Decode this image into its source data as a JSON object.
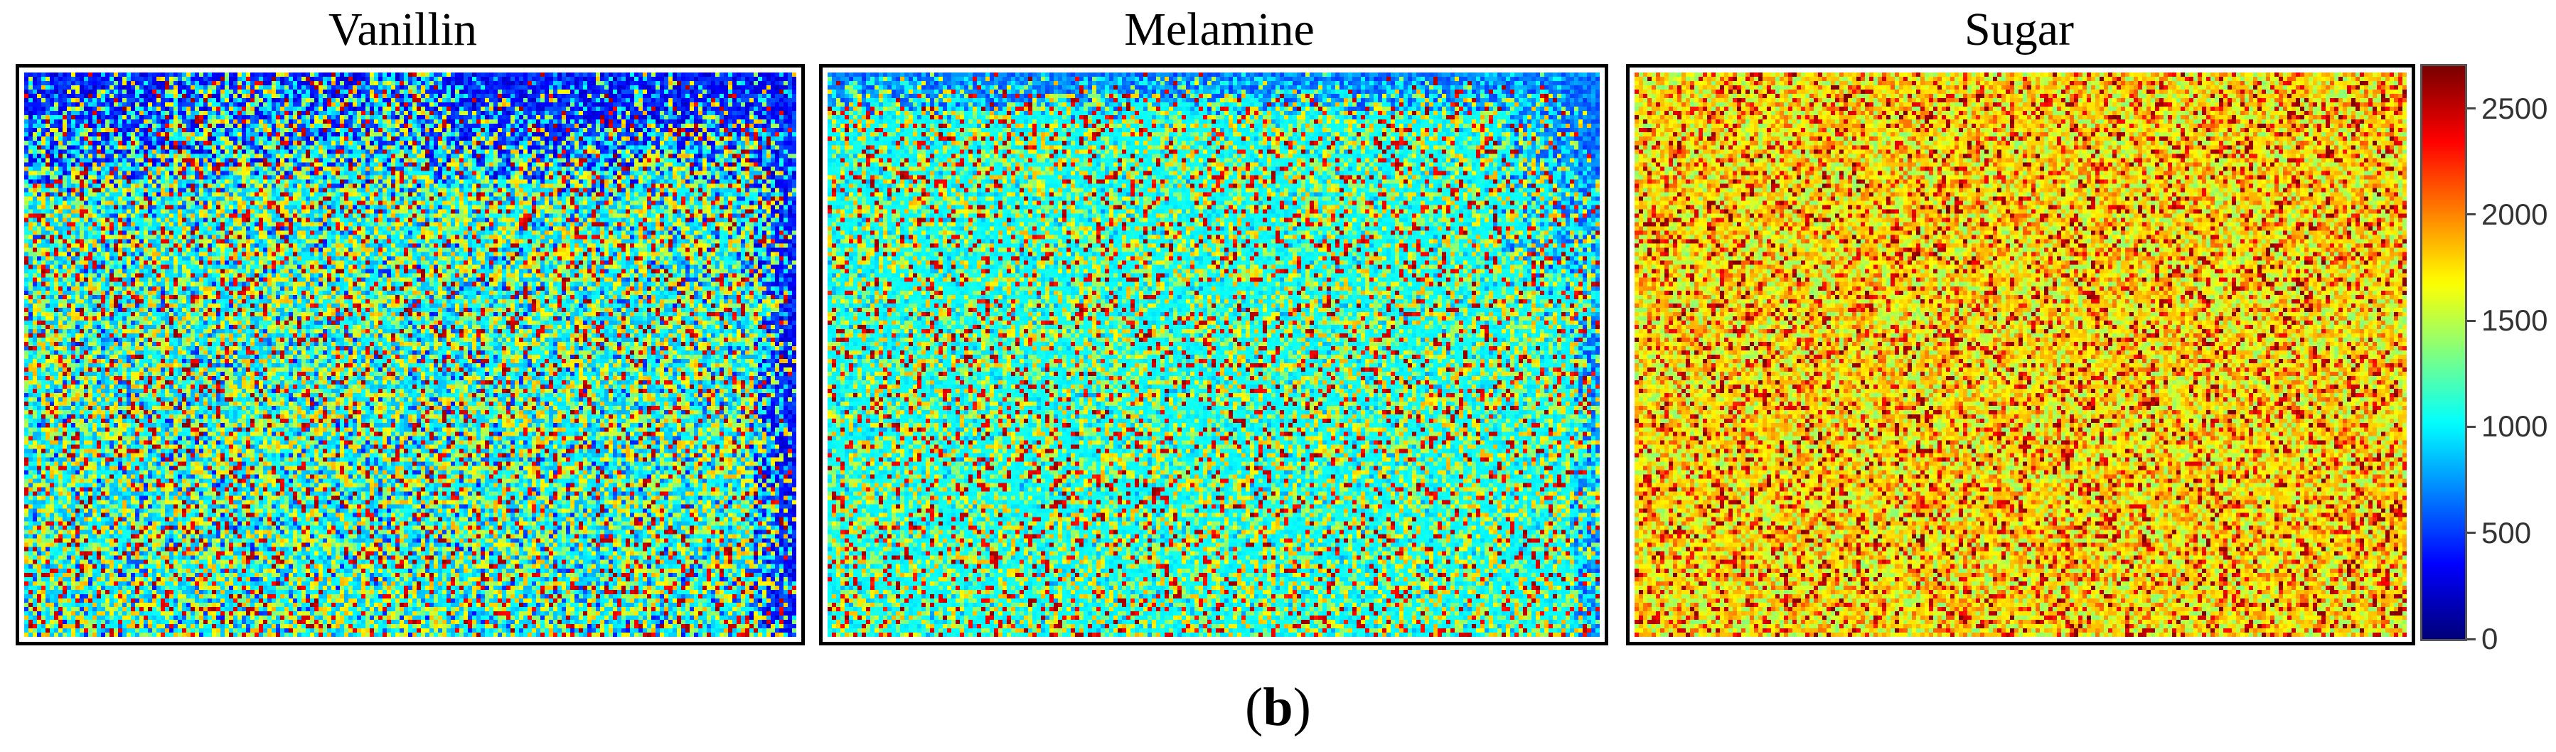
{
  "figure": {
    "caption_open": "(",
    "caption_letter": "b",
    "caption_close": ")"
  },
  "chart_data": [
    {
      "type": "heatmap",
      "title": "Vanillin",
      "colormap": "jet",
      "clim": [
        0,
        2700
      ],
      "pattern": "mixed; mostly cyan/light blue with scattered yellow and dark red speckles; dark blue at the top band and right edge",
      "typical_range": [
        300,
        2600
      ]
    },
    {
      "type": "heatmap",
      "title": "Melamine",
      "colormap": "jet",
      "clim": [
        0,
        2700
      ],
      "pattern": "predominantly cyan with yellow/red speckles; blue along the top edge and upper-right corner",
      "typical_range": [
        600,
        2600
      ]
    },
    {
      "type": "heatmap",
      "title": "Sugar",
      "colormap": "jet",
      "clim": [
        0,
        2700
      ],
      "pattern": "predominantly yellow and light green with dense dark red speckles",
      "typical_range": [
        1300,
        2700
      ]
    }
  ],
  "colorbar": {
    "ticks": [
      "2500",
      "2000",
      "1500",
      "1000",
      "500",
      "0"
    ],
    "tick_values": [
      2500,
      2000,
      1500,
      1000,
      500,
      0
    ],
    "range": [
      0,
      2700
    ]
  },
  "colors": {
    "jet_low": "#00008f",
    "jet_mid": "#80ff80",
    "jet_high": "#800000"
  }
}
